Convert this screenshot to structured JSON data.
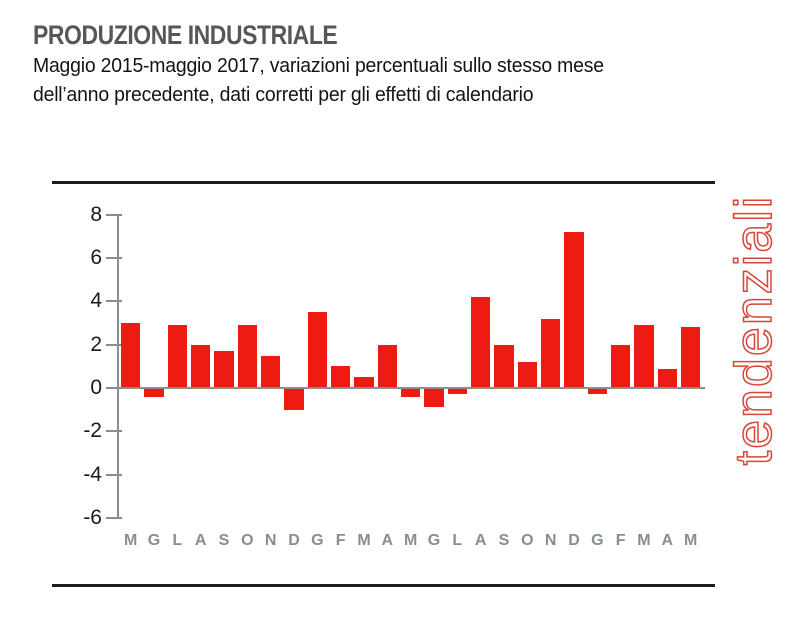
{
  "header": {
    "title": "PRODUZIONE INDUSTRIALE",
    "subtitle": "Maggio 2015-maggio 2017, variazioni percentuali sullo stesso mese\ndell’anno precedente, dati corretti per gli effetti di calendario"
  },
  "side_label": "tendenziali",
  "colors": {
    "bar_red": "#ee1b12",
    "side_label_red": "#d9453a",
    "axis_gray": "#8c8c8c",
    "month_label_gray": "#878d94",
    "title_gray": "#55575a",
    "rule_black": "#1c1c1c"
  },
  "chart_data": {
    "type": "bar",
    "title": "PRODUZIONE INDUSTRIALE",
    "subtitle": "Maggio 2015-maggio 2017, variazioni percentuali sullo stesso mese dell’anno precedente, dati corretti per gli effetti di calendario",
    "categories": [
      "M",
      "G",
      "L",
      "A",
      "S",
      "O",
      "N",
      "D",
      "G",
      "F",
      "M",
      "A",
      "M",
      "G",
      "L",
      "A",
      "S",
      "O",
      "N",
      "D",
      "G",
      "F",
      "M",
      "A",
      "M"
    ],
    "values": [
      3.0,
      -0.4,
      2.9,
      2.0,
      1.7,
      2.9,
      1.5,
      -1.0,
      3.5,
      1.0,
      0.5,
      2.0,
      -0.4,
      -0.9,
      -0.3,
      4.2,
      2.0,
      1.2,
      3.2,
      7.2,
      -0.3,
      2.0,
      2.9,
      0.9,
      2.8
    ],
    "xlabel": "",
    "ylabel": "",
    "yticks": [
      8,
      6,
      4,
      2,
      0,
      -2,
      -4,
      -6
    ],
    "ylim": [
      -6,
      8
    ],
    "grid": false,
    "legend_position": "none",
    "bar_color": "#ee1b12",
    "annotation_right": "tendenziali"
  }
}
